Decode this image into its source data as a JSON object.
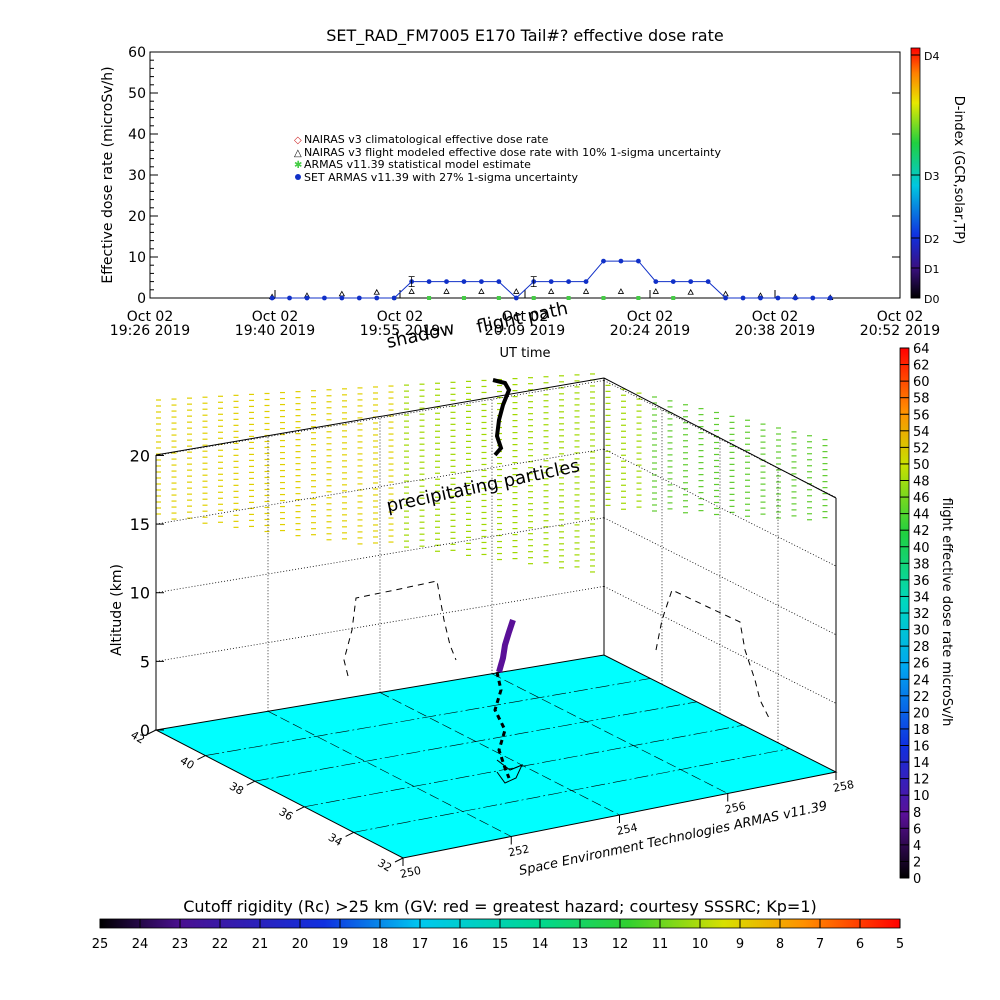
{
  "chart_data": [
    {
      "type": "scatter",
      "title": "SET_RAD_FM7005  E170 Tail#? effective dose rate",
      "xlabel": "UT time",
      "ylabel": "Effective dose rate (microSv/h)",
      "x_ticks": [
        {
          "line1": "Oct 02",
          "line2": "19:26 2019"
        },
        {
          "line1": "Oct 02",
          "line2": "19:40 2019"
        },
        {
          "line1": "Oct 02",
          "line2": "19:55 2019"
        },
        {
          "line1": "Oct 02",
          "line2": "20:09 2019"
        },
        {
          "line1": "Oct 02",
          "line2": "20:24 2019"
        },
        {
          "line1": "Oct 02",
          "line2": "20:38 2019"
        },
        {
          "line1": "Oct 02",
          "line2": "20:52 2019"
        }
      ],
      "xlim": [
        "19:26",
        "20:52"
      ],
      "y_ticks": [
        "0",
        "10",
        "20",
        "30",
        "40",
        "50",
        "60"
      ],
      "ylim": [
        0,
        60
      ],
      "legend_placement": "upper-left",
      "legend": [
        "NAIRAS v3 climatological effective dose rate",
        "NAIRAS v3 flight modeled effective dose rate with 10% 1-sigma uncertainty",
        "ARMAS v11.39 statistical model estimate",
        "SET ARMAS v11.39 with 27% 1-sigma uncertainty"
      ],
      "series": [
        {
          "name": "SET ARMAS v11.39 with 27% 1-sigma uncertainty",
          "color": "#1030c8",
          "x": [
            "19:40",
            "19:42",
            "19:44",
            "19:46",
            "19:48",
            "19:50",
            "19:52",
            "19:54",
            "19:56",
            "19:58",
            "20:00",
            "20:02",
            "20:04",
            "20:06",
            "20:08",
            "20:10",
            "20:12",
            "20:14",
            "20:16",
            "20:18",
            "20:20",
            "20:22",
            "20:24",
            "20:26",
            "20:28",
            "20:30",
            "20:32",
            "20:34",
            "20:36",
            "20:38",
            "20:40",
            "20:42",
            "20:44"
          ],
          "y": [
            0,
            0,
            0,
            0,
            0,
            0,
            0,
            0,
            4,
            4,
            4,
            4,
            4,
            4,
            0,
            4,
            4,
            4,
            4,
            9,
            9,
            9,
            4,
            4,
            4,
            4,
            0,
            0,
            0,
            0,
            0,
            0,
            0
          ]
        },
        {
          "name": "NAIRAS v3 flight modeled effective dose rate with 10% 1-sigma uncertainty",
          "color": "#000000",
          "x": [
            "19:40",
            "19:44",
            "19:48",
            "19:52",
            "19:56",
            "20:00",
            "20:04",
            "20:08",
            "20:12",
            "20:16",
            "20:20",
            "20:24",
            "20:28",
            "20:32",
            "20:36",
            "20:40",
            "20:44"
          ],
          "y": [
            0.3,
            0.6,
            1.0,
            1.4,
            1.6,
            1.6,
            1.6,
            1.6,
            1.6,
            1.6,
            1.6,
            1.6,
            1.4,
            1.0,
            0.6,
            0.3,
            0.1
          ]
        },
        {
          "name": "ARMAS v11.39 statistical model estimate",
          "color": "#44cc44",
          "x": [
            "19:54",
            "19:58",
            "20:02",
            "20:06",
            "20:10",
            "20:14",
            "20:18",
            "20:22",
            "20:26"
          ],
          "y": [
            0,
            0,
            0,
            0,
            0,
            0,
            0,
            0,
            0
          ]
        }
      ],
      "colorbar": {
        "label": "D-index (GCR,solar,TP)",
        "ticks": [
          "D0",
          "D1",
          "D2",
          "D3",
          "D4"
        ]
      }
    },
    {
      "type": "scatter3d",
      "zlabel": "Altitude (km)",
      "z_ticks": [
        "0",
        "5",
        "10",
        "15",
        "20"
      ],
      "zlim": [
        0,
        22
      ],
      "lat_ticks": [
        "32",
        "34",
        "36",
        "38",
        "40",
        "42"
      ],
      "lon_ticks": [
        "250",
        "252",
        "254",
        "256",
        "258"
      ],
      "annotations": {
        "flight_path": "flight path",
        "shadow": "shadow",
        "precipitating": "precipitating particles",
        "credit": "Space Environment Technologies ARMAS v11.39"
      },
      "colorbar": {
        "label": "flight effective dose rate microSv/h",
        "ticks": [
          "0",
          "2",
          "4",
          "6",
          "8",
          "10",
          "12",
          "14",
          "16",
          "18",
          "20",
          "22",
          "24",
          "26",
          "28",
          "30",
          "32",
          "34",
          "36",
          "38",
          "40",
          "42",
          "44",
          "46",
          "48",
          "50",
          "52",
          "54",
          "56",
          "58",
          "60",
          "62",
          "64"
        ]
      }
    },
    {
      "type": "colorbar",
      "title": "Cutoff rigidity (Rc) >25 km (GV: red = greatest hazard; courtesy SSSRC; Kp=1)",
      "ticks": [
        "25",
        "24",
        "23",
        "22",
        "21",
        "20",
        "19",
        "18",
        "17",
        "16",
        "15",
        "14",
        "13",
        "12",
        "11",
        "10",
        "9",
        "8",
        "7",
        "6",
        "5"
      ]
    }
  ]
}
